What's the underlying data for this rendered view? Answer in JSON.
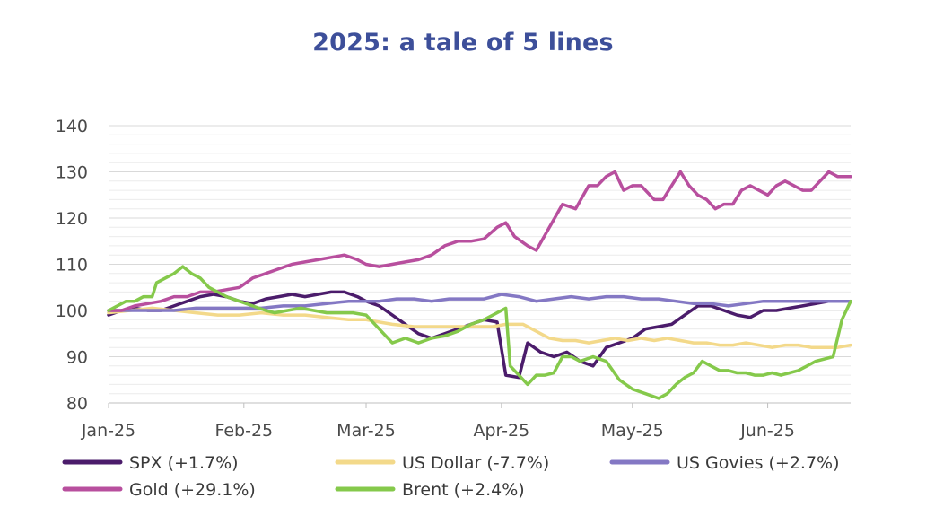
{
  "chart_data": {
    "type": "line",
    "title": "2025: a tale of 5 lines",
    "xlabel": "",
    "ylabel": "",
    "ylim": [
      80,
      140
    ],
    "yticks": [
      80,
      90,
      100,
      110,
      120,
      130,
      140
    ],
    "grid": true,
    "legend_position": "bottom",
    "x_ticks": [
      {
        "label": "Jan-25",
        "day": 0
      },
      {
        "label": "Feb-25",
        "day": 31
      },
      {
        "label": "Mar-25",
        "day": 59
      },
      {
        "label": "Apr-25",
        "day": 90
      },
      {
        "label": "May-25",
        "day": 120
      },
      {
        "label": "Jun-25",
        "day": 151
      }
    ],
    "x_range": [
      0,
      170
    ],
    "series": [
      {
        "name": "SPX (+1.7%)",
        "color": "#4b1c6b",
        "points": [
          [
            0,
            99
          ],
          [
            3,
            100
          ],
          [
            6,
            100.5
          ],
          [
            9,
            100
          ],
          [
            12,
            100
          ],
          [
            15,
            101
          ],
          [
            18,
            102
          ],
          [
            21,
            103
          ],
          [
            24,
            103.5
          ],
          [
            27,
            103
          ],
          [
            30,
            102
          ],
          [
            33,
            101.5
          ],
          [
            36,
            102.5
          ],
          [
            39,
            103
          ],
          [
            42,
            103.5
          ],
          [
            45,
            103
          ],
          [
            48,
            103.5
          ],
          [
            51,
            104
          ],
          [
            54,
            104
          ],
          [
            57,
            103
          ],
          [
            59,
            102
          ],
          [
            62,
            101
          ],
          [
            65,
            99
          ],
          [
            68,
            97
          ],
          [
            71,
            95
          ],
          [
            74,
            94
          ],
          [
            77,
            95
          ],
          [
            80,
            96
          ],
          [
            83,
            97
          ],
          [
            86,
            98
          ],
          [
            89,
            97.5
          ],
          [
            91,
            86
          ],
          [
            94,
            85.5
          ],
          [
            96,
            93
          ],
          [
            99,
            91
          ],
          [
            102,
            90
          ],
          [
            105,
            91
          ],
          [
            108,
            89
          ],
          [
            111,
            88
          ],
          [
            114,
            92
          ],
          [
            117,
            93
          ],
          [
            120,
            94
          ],
          [
            123,
            96
          ],
          [
            126,
            96.5
          ],
          [
            129,
            97
          ],
          [
            132,
            99
          ],
          [
            135,
            101
          ],
          [
            138,
            101
          ],
          [
            141,
            100
          ],
          [
            144,
            99
          ],
          [
            147,
            98.5
          ],
          [
            150,
            100
          ],
          [
            153,
            100
          ],
          [
            156,
            100.5
          ],
          [
            159,
            101
          ],
          [
            162,
            101.5
          ],
          [
            165,
            102
          ],
          [
            168,
            102
          ],
          [
            170,
            102
          ]
        ]
      },
      {
        "name": "US Dollar (-7.7%)",
        "color": "#f3d98a",
        "points": [
          [
            0,
            99.5
          ],
          [
            5,
            100
          ],
          [
            10,
            100.5
          ],
          [
            15,
            100
          ],
          [
            20,
            99.5
          ],
          [
            25,
            99
          ],
          [
            30,
            99
          ],
          [
            35,
            99.5
          ],
          [
            40,
            99
          ],
          [
            45,
            99
          ],
          [
            50,
            98.5
          ],
          [
            55,
            98
          ],
          [
            59,
            98
          ],
          [
            62,
            97.5
          ],
          [
            65,
            97
          ],
          [
            70,
            96.5
          ],
          [
            75,
            96.5
          ],
          [
            80,
            96.5
          ],
          [
            85,
            96.5
          ],
          [
            88,
            96.5
          ],
          [
            91,
            97
          ],
          [
            95,
            97
          ],
          [
            98,
            95.5
          ],
          [
            101,
            94
          ],
          [
            104,
            93.5
          ],
          [
            107,
            93.5
          ],
          [
            110,
            93
          ],
          [
            113,
            93.5
          ],
          [
            116,
            94
          ],
          [
            119,
            93.5
          ],
          [
            122,
            94
          ],
          [
            125,
            93.5
          ],
          [
            128,
            94
          ],
          [
            131,
            93.5
          ],
          [
            134,
            93
          ],
          [
            137,
            93
          ],
          [
            140,
            92.5
          ],
          [
            143,
            92.5
          ],
          [
            146,
            93
          ],
          [
            149,
            92.5
          ],
          [
            152,
            92
          ],
          [
            155,
            92.5
          ],
          [
            158,
            92.5
          ],
          [
            161,
            92
          ],
          [
            164,
            92
          ],
          [
            167,
            92
          ],
          [
            170,
            92.5
          ]
        ]
      },
      {
        "name": "US Govies (+2.7%)",
        "color": "#8478c4",
        "points": [
          [
            0,
            100
          ],
          [
            5,
            100
          ],
          [
            10,
            100
          ],
          [
            15,
            100
          ],
          [
            20,
            100.5
          ],
          [
            25,
            100.5
          ],
          [
            30,
            100.5
          ],
          [
            35,
            100.5
          ],
          [
            40,
            101
          ],
          [
            45,
            101
          ],
          [
            50,
            101.5
          ],
          [
            55,
            102
          ],
          [
            59,
            102
          ],
          [
            62,
            102
          ],
          [
            66,
            102.5
          ],
          [
            70,
            102.5
          ],
          [
            74,
            102
          ],
          [
            78,
            102.5
          ],
          [
            82,
            102.5
          ],
          [
            86,
            102.5
          ],
          [
            90,
            103.5
          ],
          [
            94,
            103
          ],
          [
            98,
            102
          ],
          [
            102,
            102.5
          ],
          [
            106,
            103
          ],
          [
            110,
            102.5
          ],
          [
            114,
            103
          ],
          [
            118,
            103
          ],
          [
            122,
            102.5
          ],
          [
            126,
            102.5
          ],
          [
            130,
            102
          ],
          [
            134,
            101.5
          ],
          [
            138,
            101.5
          ],
          [
            142,
            101
          ],
          [
            146,
            101.5
          ],
          [
            150,
            102
          ],
          [
            154,
            102
          ],
          [
            158,
            102
          ],
          [
            162,
            102
          ],
          [
            166,
            102
          ],
          [
            170,
            102
          ]
        ]
      },
      {
        "name": "Gold (+29.1%)",
        "color": "#b84f9e",
        "points": [
          [
            0,
            100
          ],
          [
            3,
            100
          ],
          [
            6,
            101
          ],
          [
            9,
            101.5
          ],
          [
            12,
            102
          ],
          [
            15,
            103
          ],
          [
            18,
            103
          ],
          [
            21,
            104
          ],
          [
            24,
            104
          ],
          [
            27,
            104.5
          ],
          [
            30,
            105
          ],
          [
            33,
            107
          ],
          [
            36,
            108
          ],
          [
            39,
            109
          ],
          [
            42,
            110
          ],
          [
            45,
            110.5
          ],
          [
            48,
            111
          ],
          [
            51,
            111.5
          ],
          [
            54,
            112
          ],
          [
            57,
            111
          ],
          [
            59,
            110
          ],
          [
            62,
            109.5
          ],
          [
            65,
            110
          ],
          [
            68,
            110.5
          ],
          [
            71,
            111
          ],
          [
            74,
            112
          ],
          [
            77,
            114
          ],
          [
            80,
            115
          ],
          [
            83,
            115
          ],
          [
            86,
            115.5
          ],
          [
            89,
            118
          ],
          [
            91,
            119
          ],
          [
            93,
            116
          ],
          [
            96,
            114
          ],
          [
            98,
            113
          ],
          [
            101,
            118
          ],
          [
            104,
            123
          ],
          [
            107,
            122
          ],
          [
            110,
            127
          ],
          [
            112,
            127
          ],
          [
            114,
            129
          ],
          [
            116,
            130
          ],
          [
            118,
            126
          ],
          [
            120,
            127
          ],
          [
            122,
            127
          ],
          [
            125,
            124
          ],
          [
            127,
            124
          ],
          [
            129,
            127
          ],
          [
            131,
            130
          ],
          [
            133,
            127
          ],
          [
            135,
            125
          ],
          [
            137,
            124
          ],
          [
            139,
            122
          ],
          [
            141,
            123
          ],
          [
            143,
            123
          ],
          [
            145,
            126
          ],
          [
            147,
            127
          ],
          [
            149,
            126
          ],
          [
            151,
            125
          ],
          [
            153,
            127
          ],
          [
            155,
            128
          ],
          [
            157,
            127
          ],
          [
            159,
            126
          ],
          [
            161,
            126
          ],
          [
            163,
            128
          ],
          [
            165,
            130
          ],
          [
            167,
            129
          ],
          [
            170,
            129
          ]
        ]
      },
      {
        "name": "Brent (+2.4%)",
        "color": "#85c94b",
        "points": [
          [
            0,
            100
          ],
          [
            2,
            101
          ],
          [
            4,
            102
          ],
          [
            6,
            102
          ],
          [
            8,
            103
          ],
          [
            10,
            103
          ],
          [
            11,
            106
          ],
          [
            13,
            107
          ],
          [
            15,
            108
          ],
          [
            17,
            109.5
          ],
          [
            19,
            108
          ],
          [
            21,
            107
          ],
          [
            23,
            105
          ],
          [
            25,
            104
          ],
          [
            27,
            103
          ],
          [
            30,
            102
          ],
          [
            33,
            101
          ],
          [
            36,
            100
          ],
          [
            38,
            99.5
          ],
          [
            41,
            100
          ],
          [
            44,
            100.5
          ],
          [
            47,
            100
          ],
          [
            50,
            99.5
          ],
          [
            53,
            99.5
          ],
          [
            56,
            99.5
          ],
          [
            59,
            99
          ],
          [
            62,
            96
          ],
          [
            65,
            93
          ],
          [
            68,
            94
          ],
          [
            71,
            93
          ],
          [
            74,
            94
          ],
          [
            77,
            94.5
          ],
          [
            80,
            95.5
          ],
          [
            83,
            97
          ],
          [
            86,
            98
          ],
          [
            89,
            99.5
          ],
          [
            91,
            100.5
          ],
          [
            92,
            88
          ],
          [
            94,
            86
          ],
          [
            96,
            84
          ],
          [
            98,
            86
          ],
          [
            100,
            86
          ],
          [
            102,
            86.5
          ],
          [
            104,
            90
          ],
          [
            106,
            90
          ],
          [
            108,
            89
          ],
          [
            111,
            90
          ],
          [
            114,
            89
          ],
          [
            117,
            85
          ],
          [
            120,
            83
          ],
          [
            123,
            82
          ],
          [
            126,
            81
          ],
          [
            128,
            82
          ],
          [
            130,
            84
          ],
          [
            132,
            85.5
          ],
          [
            134,
            86.5
          ],
          [
            136,
            89
          ],
          [
            138,
            88
          ],
          [
            140,
            87
          ],
          [
            142,
            87
          ],
          [
            144,
            86.5
          ],
          [
            146,
            86.5
          ],
          [
            148,
            86
          ],
          [
            150,
            86
          ],
          [
            152,
            86.5
          ],
          [
            154,
            86
          ],
          [
            156,
            86.5
          ],
          [
            158,
            87
          ],
          [
            160,
            88
          ],
          [
            162,
            89
          ],
          [
            164,
            89.5
          ],
          [
            166,
            90
          ],
          [
            168,
            98
          ],
          [
            170,
            102
          ]
        ]
      }
    ]
  }
}
